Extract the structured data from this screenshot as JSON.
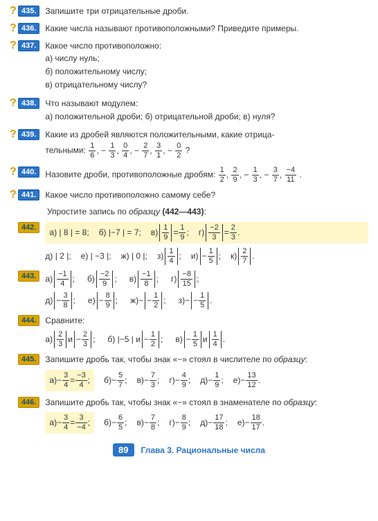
{
  "colors": {
    "badge_blue_bg": "#2a74c9",
    "badge_blue_border": "#1a5ca9",
    "badge_yellow_bg": "#d8a400",
    "qmark_color": "#d89b00",
    "sample_bg": "#fff7c9",
    "text": "#333333",
    "footer_blue": "#2a74c9"
  },
  "badges": {
    "q435": "435.",
    "q436": "436.",
    "q437": "437.",
    "q438": "438.",
    "q439": "439.",
    "q440": "440.",
    "q441": "441.",
    "q442": "442.",
    "q443": "443.",
    "q444": "444.",
    "q445": "445.",
    "q446": "446."
  },
  "qmark": "?",
  "text435": "Запишите три отрицательные дроби.",
  "text436": "Какие числа называют противоположными? Приведите примеры.",
  "text437": {
    "head": "Какое число противоположно:",
    "a": "а) числу нуль;",
    "b": "б) положительному числу;",
    "c": "в) отрицательному числу?"
  },
  "text438": {
    "head": "Что называют модулем:",
    "sub": "а) положительной дроби; б) отрицательной дроби; в) нуля?"
  },
  "text439": {
    "pre": "Какие из дробей являются положительными, какие отрица-",
    "post": "тельными: ",
    "list": [
      {
        "n": "1",
        "d": "6"
      },
      {
        "n": "1",
        "d": "3",
        "neg": true
      },
      {
        "n": "0",
        "d": "4"
      },
      {
        "n": "2",
        "d": "7",
        "neg": true
      },
      {
        "n": "3",
        "d": "1"
      },
      {
        "n": "0",
        "d": "2",
        "neg": true
      }
    ],
    "end": "?"
  },
  "text440": {
    "pre": "Назовите дроби, противоположные дробям: ",
    "list": [
      {
        "n": "1",
        "d": "2"
      },
      {
        "n": "2",
        "d": "9"
      },
      {
        "n": "1",
        "d": "3",
        "neg": true
      },
      {
        "n": "3",
        "d": "7",
        "neg": true
      },
      {
        "n": "−4",
        "d": "11"
      }
    ],
    "end": "."
  },
  "text441": "Какое число противоположно самому себе?",
  "instr": "Упростите запись по образцу (442—443):",
  "q442": {
    "sample": {
      "a": "а) | 8 | = 8;",
      "b": "б) |−7 | = 7;",
      "c_lbl": "в) ",
      "c_lhsN": "1",
      "c_lhsD": "9",
      "c_rhsN": "1",
      "c_rhsD": "9",
      "d_lbl": "г) ",
      "d_lhsN": "−2",
      "d_lhsD": "3",
      "d_rhsN": "2",
      "d_rhsD": "3"
    },
    "rest": {
      "d": "д) | 2 |;",
      "e": "е) | −3 |;",
      "zh": "ж) | 0 |;",
      "z_l": "з) ",
      "z_n": "1",
      "z_d": "4",
      "i_l": "и) ",
      "i_neg": true,
      "i_n": "1",
      "i_d": "5",
      "k_l": "к) ",
      "k_n": "2",
      "k_d": "7"
    }
  },
  "q443": {
    "a": {
      "l": "а) ",
      "n": "−1",
      "d": "4"
    },
    "b": {
      "l": "б) ",
      "n": "−2",
      "d": "9"
    },
    "v": {
      "l": "в) ",
      "n": "−1",
      "d": "8"
    },
    "g": {
      "l": "г) ",
      "n": "−8",
      "d": "15"
    },
    "d": {
      "l": "д) ",
      "neg": true,
      "n": "3",
      "d": "8"
    },
    "e": {
      "l": "е) ",
      "neg": true,
      "n": "8",
      "d": "9"
    },
    "zh": {
      "l": "ж) ",
      "outneg": true,
      "neg": true,
      "n": "1",
      "d": "2"
    },
    "z": {
      "l": "з) ",
      "outneg": true,
      "neg": true,
      "n": "1",
      "d": "5"
    }
  },
  "q444": {
    "head": "Сравните:",
    "a": {
      "l": "а) ",
      "n1": "2",
      "d1": "3",
      "sep": " и ",
      "neg2": true,
      "n2": "2",
      "d2": "3"
    },
    "b": {
      "l": "б) |−5 | и ",
      "neg": true,
      "n": "1",
      "d": "2"
    },
    "v": {
      "l": "в) ",
      "neg1": true,
      "n1": "1",
      "d1": "5",
      "sep": " и ",
      "n2": "1",
      "d2": "4"
    }
  },
  "q445": {
    "head": "Запишите дробь так, чтобы знак «−» стоял в числителе по образцу:",
    "sample": {
      "l": "а) ",
      "lhsNeg": true,
      "lhsN": "3",
      "lhsD": "4",
      "eq": " = ",
      "rhsN": "−3",
      "rhsD": "4",
      "end": ";"
    },
    "b": {
      "l": "б) ",
      "neg": true,
      "n": "5",
      "d": "7",
      "e": ";"
    },
    "v": {
      "l": "в) ",
      "neg": true,
      "n": "7",
      "d": "3",
      "e": ";"
    },
    "g": {
      "l": "г) ",
      "neg": true,
      "n": "4",
      "d": "9",
      "e": ";"
    },
    "dd": {
      "l": "д) ",
      "neg": true,
      "n": "1",
      "d": "9",
      "e": ";"
    },
    "ee": {
      "l": "е) ",
      "neg": true,
      "n": "13",
      "d": "12",
      "e": "."
    }
  },
  "q446": {
    "head": "Запишите дробь так, чтобы знак «−» стоял в знаменателе по образцу:",
    "sample": {
      "l": "а) ",
      "lhsNeg": true,
      "lhsN": "3",
      "lhsD": "4",
      "eq": " = ",
      "rhsN": "3",
      "rhsD": "−4",
      "end": ";"
    },
    "b": {
      "l": "б) ",
      "neg": true,
      "n": "6",
      "d": "5",
      "e": ";"
    },
    "v": {
      "l": "в) ",
      "neg": true,
      "n": "7",
      "d": "8",
      "e": ";"
    },
    "g": {
      "l": "г) ",
      "neg": true,
      "n": "8",
      "d": "9",
      "e": ";"
    },
    "dd": {
      "l": "д) ",
      "neg": true,
      "n": "17",
      "d": "18",
      "e": ";"
    },
    "ee": {
      "l": "е) ",
      "neg": true,
      "n": "18",
      "d": "17",
      "e": "."
    }
  },
  "footer": {
    "page": "89",
    "chapter": "Глава 3. Рациональные числа"
  }
}
